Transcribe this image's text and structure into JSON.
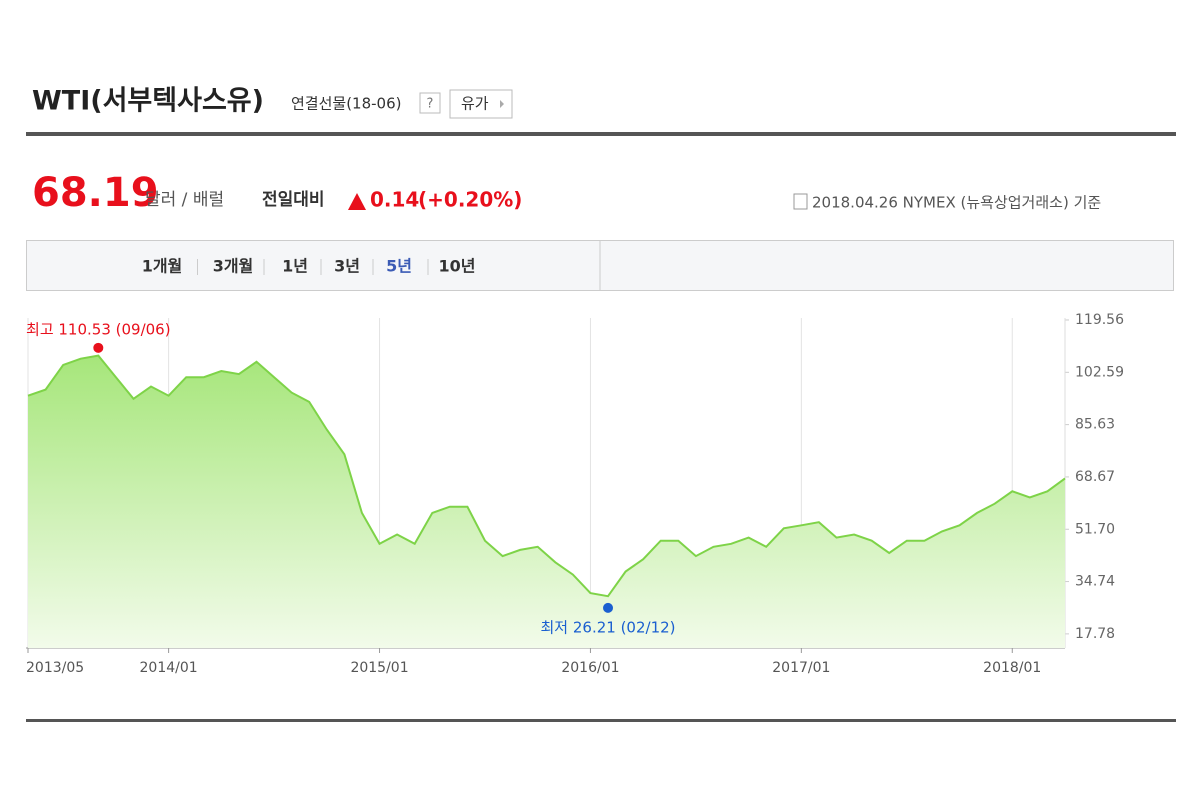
{
  "header": {
    "title": "WTI(서부텍사스유)",
    "subtitle": "연결선물(18-06)",
    "help": "?",
    "category_button": "유가"
  },
  "price": {
    "value": 68.19,
    "unit": "달러 / 배럴",
    "change_label": "전일대비",
    "change": 0.14,
    "change_pct": "(+0.20%)",
    "source": "2018.04.26 NYMEX (뉴욕상업거래소) 기준"
  },
  "tabs": {
    "items": [
      "1개월",
      "3개월",
      "1년",
      "3년",
      "5년",
      "10년"
    ],
    "active": 4
  },
  "chart_data": {
    "type": "area",
    "color": "#7ed348",
    "x": [
      "2013/05",
      "2013/06",
      "2013/07",
      "2013/08",
      "2013/09",
      "2013/10",
      "2013/11",
      "2013/12",
      "2014/01",
      "2014/02",
      "2014/03",
      "2014/04",
      "2014/05",
      "2014/06",
      "2014/07",
      "2014/08",
      "2014/09",
      "2014/10",
      "2014/11",
      "2014/12",
      "2015/01",
      "2015/02",
      "2015/03",
      "2015/04",
      "2015/05",
      "2015/06",
      "2015/07",
      "2015/08",
      "2015/09",
      "2015/10",
      "2015/11",
      "2015/12",
      "2016/01",
      "2016/02",
      "2016/03",
      "2016/04",
      "2016/05",
      "2016/06",
      "2016/07",
      "2016/08",
      "2016/09",
      "2016/10",
      "2016/11",
      "2016/12",
      "2017/01",
      "2017/02",
      "2017/03",
      "2017/04",
      "2017/05",
      "2017/06",
      "2017/07",
      "2017/08",
      "2017/09",
      "2017/10",
      "2017/11",
      "2017/12",
      "2018/01",
      "2018/02",
      "2018/03",
      "2018/04"
    ],
    "values": [
      95,
      97,
      105,
      107,
      108,
      101,
      94,
      98,
      95,
      101,
      101,
      103,
      102,
      106,
      101,
      96,
      93,
      84,
      76,
      57,
      47,
      50,
      47,
      57,
      59,
      59,
      48,
      43,
      45,
      46,
      41,
      37,
      31,
      30,
      38,
      42,
      48,
      48,
      43,
      46,
      47,
      49,
      46,
      52,
      53,
      54,
      49,
      50,
      48,
      44,
      48,
      48,
      51,
      53,
      57,
      60,
      64,
      62,
      64,
      68.19
    ],
    "high": {
      "label": "최고 110.53 (09/06)",
      "value": 110.53,
      "x": "2013/09"
    },
    "low": {
      "label": "최저 26.21 (02/12)",
      "value": 26.21,
      "x": "2016/02"
    },
    "ylim": [
      13.2,
      120.2
    ],
    "yticks": [
      17.78,
      34.74,
      {
        "value": 51.7,
        "label": "51.70"
      },
      68.67,
      85.63,
      102.59,
      119.56
    ],
    "xticks": [
      "2013/05",
      "2014/01",
      "2015/01",
      "2016/01",
      "2017/01",
      "2018/01"
    ],
    "grid": true
  }
}
